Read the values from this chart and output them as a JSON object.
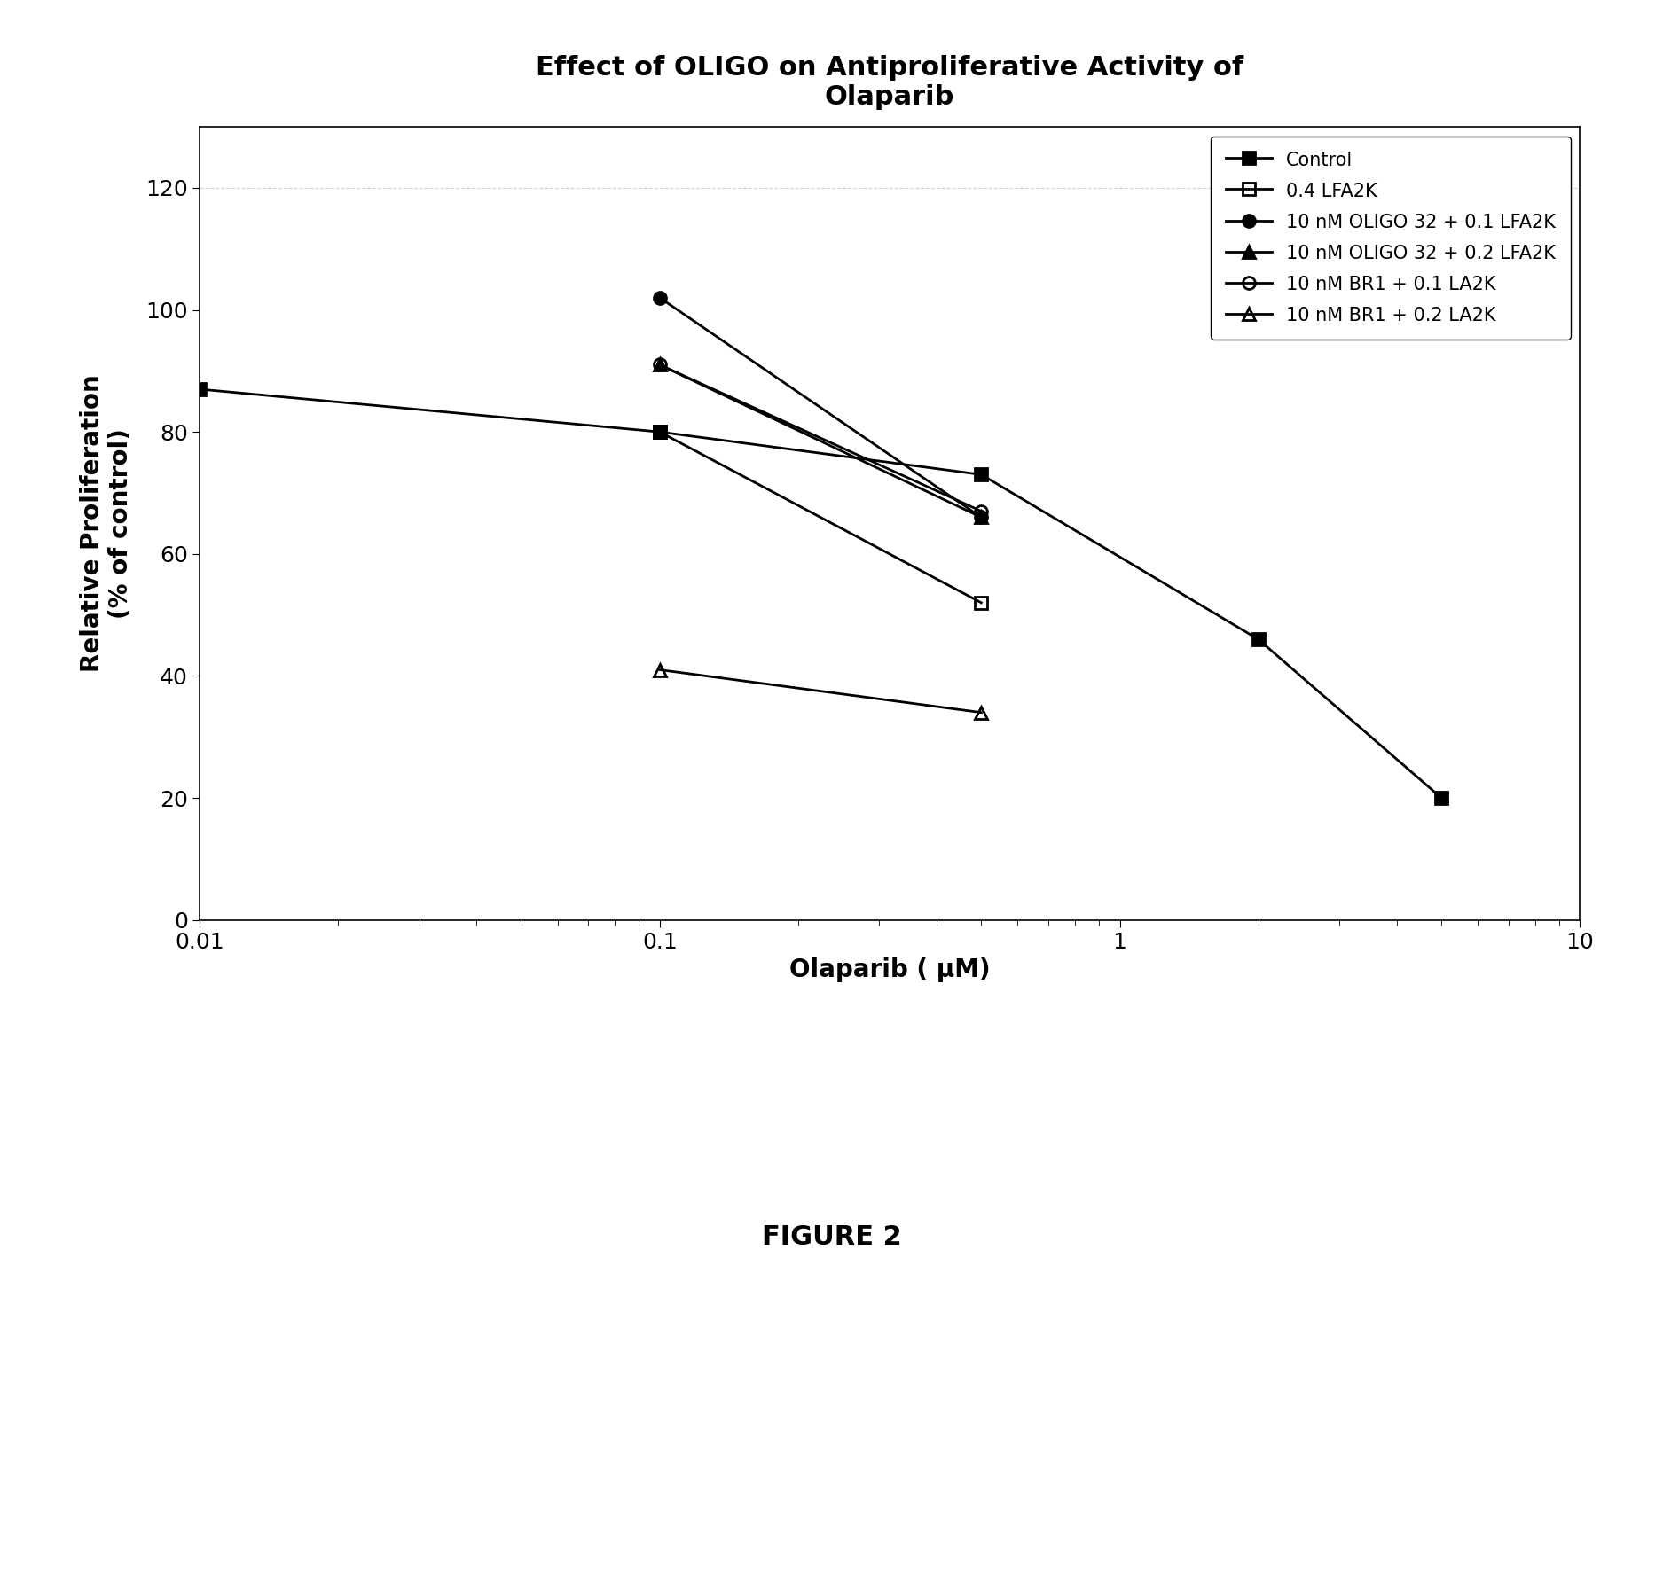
{
  "title": "Effect of OLIGO on Antiproliferative Activity of\nOlaparib",
  "xlabel": "Olaparib ( μM)",
  "ylabel": "Relative Proliferation\n(% of control)",
  "figure_caption": "FIGURE 2",
  "xlim": [
    0.01,
    10
  ],
  "ylim": [
    0,
    130
  ],
  "yticks": [
    0,
    20,
    40,
    60,
    80,
    100,
    120
  ],
  "series": [
    {
      "label": "Control",
      "x": [
        0.01,
        0.1,
        0.5,
        2,
        5
      ],
      "y": [
        87,
        80,
        73,
        46,
        20
      ],
      "marker": "s",
      "fillstyle": "full",
      "color": "#000000",
      "linewidth": 2.0,
      "markersize": 10
    },
    {
      "label": "0.4 LFA2K",
      "x": [
        0.1,
        0.5
      ],
      "y": [
        80,
        52
      ],
      "marker": "s",
      "fillstyle": "none",
      "color": "#000000",
      "linewidth": 2.0,
      "markersize": 10
    },
    {
      "label": "10 nM OLIGO 32 + 0.1 LFA2K",
      "x": [
        0.1,
        0.5
      ],
      "y": [
        102,
        66
      ],
      "marker": "o",
      "fillstyle": "full",
      "color": "#000000",
      "linewidth": 2.0,
      "markersize": 10
    },
    {
      "label": "10 nM OLIGO 32 + 0.2 LFA2K",
      "x": [
        0.1,
        0.5
      ],
      "y": [
        91,
        66
      ],
      "marker": "^",
      "fillstyle": "full",
      "color": "#000000",
      "linewidth": 2.0,
      "markersize": 10
    },
    {
      "label": "10 nM BR1 + 0.1 LA2K",
      "x": [
        0.1,
        0.5
      ],
      "y": [
        91,
        67
      ],
      "marker": "o",
      "fillstyle": "none",
      "color": "#000000",
      "linewidth": 2.0,
      "markersize": 10
    },
    {
      "label": "10 nM BR1 + 0.2 LA2K",
      "x": [
        0.1,
        0.5
      ],
      "y": [
        41,
        34
      ],
      "marker": "^",
      "fillstyle": "none",
      "color": "#000000",
      "linewidth": 2.0,
      "markersize": 10
    }
  ],
  "background_color": "#ffffff",
  "title_fontsize": 22,
  "axis_label_fontsize": 20,
  "tick_fontsize": 18,
  "legend_fontsize": 15,
  "caption_fontsize": 22
}
